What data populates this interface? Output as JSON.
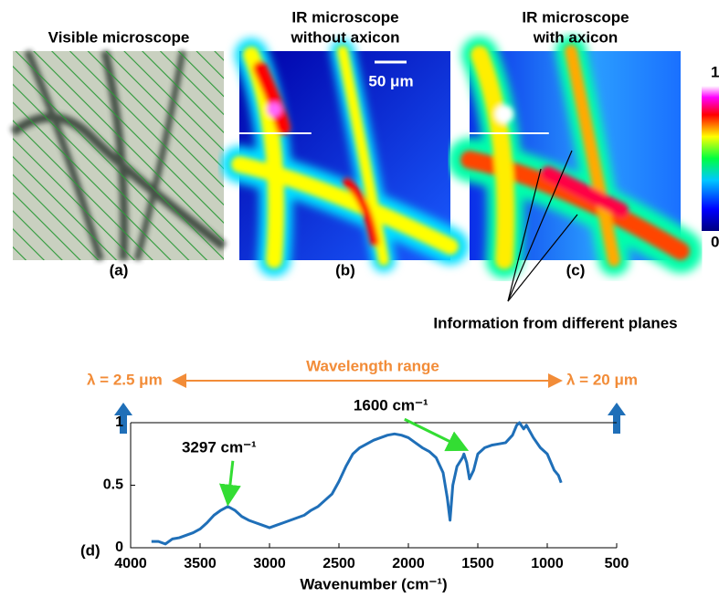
{
  "panels": {
    "a": {
      "title": [
        "Visible microscope"
      ],
      "label": "(a)"
    },
    "b": {
      "title": [
        "IR microscope",
        "without axicon"
      ],
      "label": "(b)",
      "scale_bar": "50 μm"
    },
    "c": {
      "title": [
        "IR microscope",
        "with axicon"
      ],
      "label": "(c)",
      "annotation": "Information from different planes"
    },
    "colorbar": {
      "max_label": "1",
      "min_label": "0"
    }
  },
  "range": {
    "left": "λ = 2.5 μm",
    "center": "Wavelength range",
    "right": "λ = 20 μm"
  },
  "chart_data": {
    "type": "line",
    "panel_label": "(d)",
    "x_label": "Wavenumber (cm⁻¹)",
    "color": "#1f6fb8",
    "x": [
      3850,
      3800,
      3750,
      3700,
      3650,
      3600,
      3550,
      3500,
      3450,
      3400,
      3350,
      3300,
      3250,
      3200,
      3150,
      3100,
      3050,
      3000,
      2950,
      2900,
      2850,
      2800,
      2750,
      2700,
      2650,
      2600,
      2550,
      2500,
      2450,
      2400,
      2350,
      2300,
      2250,
      2200,
      2150,
      2100,
      2050,
      2000,
      1950,
      1900,
      1850,
      1800,
      1750,
      1720,
      1700,
      1680,
      1650,
      1610,
      1600,
      1580,
      1560,
      1530,
      1500,
      1450,
      1400,
      1350,
      1300,
      1250,
      1220,
      1200,
      1170,
      1150,
      1100,
      1050,
      1000,
      950,
      920,
      900
    ],
    "values": [
      0.05,
      0.05,
      0.03,
      0.07,
      0.08,
      0.1,
      0.12,
      0.15,
      0.2,
      0.26,
      0.3,
      0.33,
      0.3,
      0.25,
      0.22,
      0.2,
      0.18,
      0.16,
      0.18,
      0.2,
      0.22,
      0.24,
      0.26,
      0.3,
      0.33,
      0.38,
      0.43,
      0.53,
      0.65,
      0.75,
      0.8,
      0.83,
      0.86,
      0.88,
      0.9,
      0.91,
      0.9,
      0.88,
      0.84,
      0.8,
      0.77,
      0.72,
      0.6,
      0.4,
      0.22,
      0.5,
      0.65,
      0.72,
      0.75,
      0.68,
      0.55,
      0.62,
      0.75,
      0.8,
      0.82,
      0.83,
      0.84,
      0.9,
      0.98,
      1.0,
      0.95,
      0.98,
      0.88,
      0.8,
      0.75,
      0.62,
      0.58,
      0.52
    ],
    "xlim": [
      4000,
      500
    ],
    "xticks": [
      4000,
      3500,
      3000,
      2500,
      2000,
      1500,
      1000,
      500
    ],
    "ylim": [
      0,
      1
    ],
    "yticks": [
      0,
      0.5,
      1
    ],
    "annotations": [
      {
        "text": "3297 cm⁻¹",
        "x": 3297,
        "y": 0.33
      },
      {
        "text": "1600 cm⁻¹",
        "x": 1600,
        "y": 0.75
      }
    ]
  }
}
